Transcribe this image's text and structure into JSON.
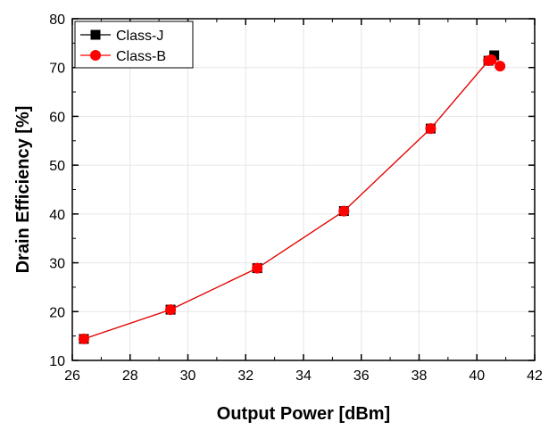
{
  "chart_data": {
    "type": "line",
    "title": "",
    "xlabel": "Output Power [dBm]",
    "ylabel": "Drain Efficiency [%]",
    "xlim": [
      26,
      42
    ],
    "ylim": [
      10,
      80
    ],
    "xticks": [
      26,
      28,
      30,
      32,
      34,
      36,
      38,
      40,
      42
    ],
    "yticks": [
      10,
      20,
      30,
      40,
      50,
      60,
      70,
      80
    ],
    "grid": true,
    "legend": "top-left",
    "series": [
      {
        "name": "Class-J",
        "color": "#000000",
        "marker": "square",
        "x": [
          26.4,
          29.4,
          32.4,
          35.4,
          38.4,
          40.4,
          40.6
        ],
        "y": [
          14.4,
          20.4,
          28.9,
          40.6,
          57.5,
          71.4,
          72.5
        ]
      },
      {
        "name": "Class-B",
        "color": "#ff0000",
        "marker": "circle",
        "x": [
          26.4,
          29.4,
          32.4,
          35.4,
          38.4,
          40.4,
          40.5,
          40.8
        ],
        "y": [
          14.4,
          20.4,
          28.9,
          40.6,
          57.5,
          71.4,
          71.6,
          70.3
        ]
      }
    ]
  }
}
